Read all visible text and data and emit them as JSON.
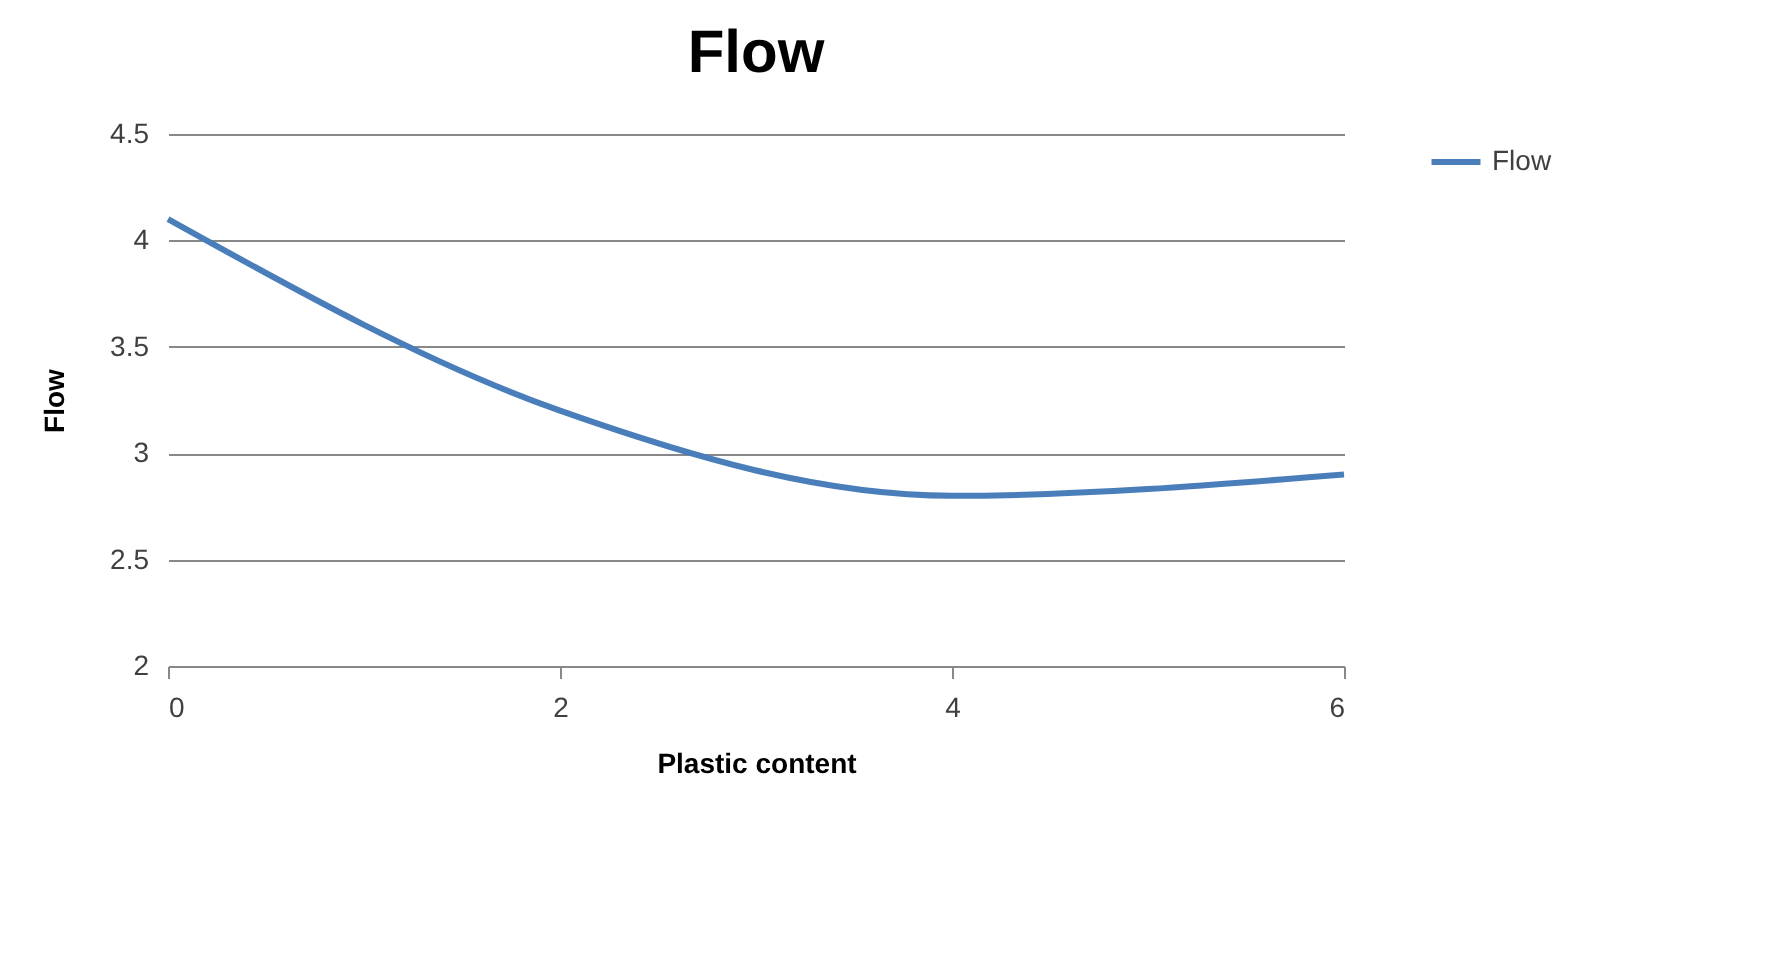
{
  "chart_data": {
    "type": "line",
    "title": "Flow",
    "xlabel": "Plastic content",
    "ylabel": "Flow",
    "x": [
      0,
      2,
      4,
      6
    ],
    "series": [
      {
        "name": "Flow",
        "color": "#4a7ebb",
        "values": [
          4.1,
          3.2,
          2.8,
          2.9
        ]
      }
    ],
    "xlim": [
      0,
      6
    ],
    "xticks": [
      0,
      2,
      4,
      6
    ],
    "ylim": [
      2,
      4.5
    ],
    "yticks": [
      2,
      2.5,
      3,
      3.5,
      4,
      4.5
    ],
    "grid": "y",
    "legend": "right",
    "marker": "none",
    "line_style": "solid"
  }
}
